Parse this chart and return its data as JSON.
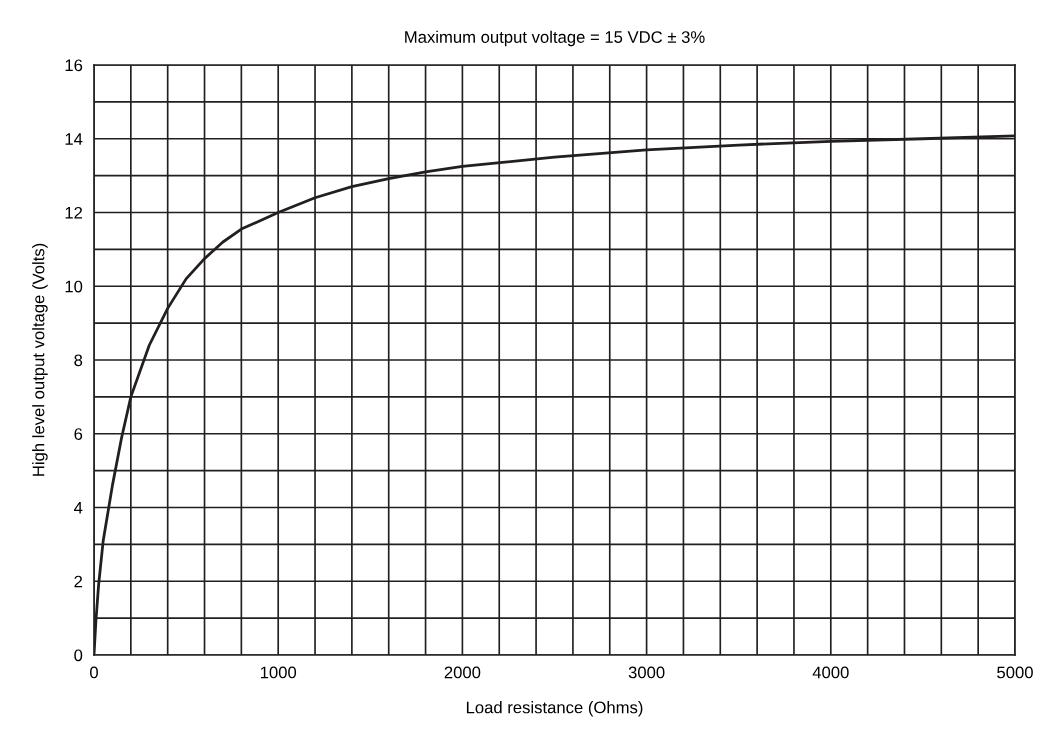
{
  "chart_data": {
    "type": "line",
    "title": "Maximum output voltage = 15 VDC ± 3%",
    "xlabel": "Load resistance (Ohms)",
    "ylabel": "High level output voltage (Volts)",
    "xlim": [
      0,
      5000
    ],
    "ylim": [
      0,
      16
    ],
    "xticks": [
      0,
      {
        "value": 200,
        "label": null
      },
      {
        "value": 400,
        "label": null
      },
      {
        "value": 600,
        "label": null
      },
      {
        "value": 800,
        "label": null
      },
      1000,
      {
        "value": 1200,
        "label": null
      },
      {
        "value": 1400,
        "label": null
      },
      {
        "value": 1600,
        "label": null
      },
      {
        "value": 1800,
        "label": null
      },
      2000,
      {
        "value": 2200,
        "label": null
      },
      {
        "value": 2400,
        "label": null
      },
      {
        "value": 2600,
        "label": null
      },
      {
        "value": 2800,
        "label": null
      },
      3000,
      {
        "value": 3200,
        "label": null
      },
      {
        "value": 3400,
        "label": null
      },
      {
        "value": 3600,
        "label": null
      },
      {
        "value": 3800,
        "label": null
      },
      4000,
      {
        "value": 4200,
        "label": null
      },
      {
        "value": 4400,
        "label": null
      },
      {
        "value": 4600,
        "label": null
      },
      {
        "value": 4800,
        "label": null
      },
      5000
    ],
    "yticks": [
      0,
      {
        "value": 1,
        "label": null
      },
      2,
      {
        "value": 3,
        "label": null
      },
      4,
      {
        "value": 5,
        "label": null
      },
      6,
      {
        "value": 7,
        "label": null
      },
      8,
      {
        "value": 9,
        "label": null
      },
      10,
      {
        "value": 11,
        "label": null
      },
      12,
      {
        "value": 13,
        "label": null
      },
      14,
      {
        "value": 15,
        "label": null
      },
      16
    ],
    "grid": true,
    "marker": "none",
    "line_style": "solid",
    "series": [
      {
        "color": "#231f20",
        "x": [
          0,
          10,
          25,
          50,
          100,
          150,
          200,
          300,
          400,
          500,
          600,
          700,
          800,
          1000,
          1200,
          1400,
          1600,
          1800,
          2000,
          2500,
          3000,
          3500,
          4000,
          4500,
          5000
        ],
        "values": [
          0,
          0.9,
          1.9,
          3.1,
          4.6,
          5.9,
          7,
          8.4,
          9.4,
          10.2,
          10.75,
          11.2,
          11.55,
          12.0,
          12.4,
          12.7,
          12.92,
          13.1,
          13.25,
          13.5,
          13.7,
          13.83,
          13.93,
          14.0,
          14.08
        ]
      }
    ]
  }
}
